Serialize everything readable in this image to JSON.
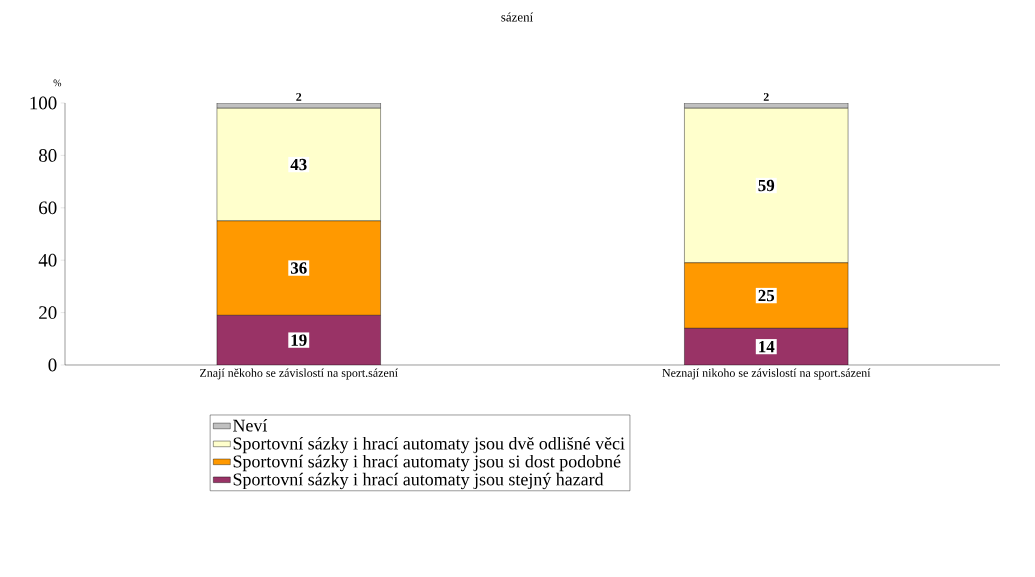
{
  "chart_data": {
    "type": "bar",
    "stacked": true,
    "title": "sázení",
    "ylabel": "%",
    "categories": [
      "Znají někoho se závislostí na sport.sázení",
      "Neznají nikoho se závislostí na sport.sázení"
    ],
    "series": [
      {
        "name": "Sportovní sázky i hrací automaty jsou stejný hazard",
        "color": "#993366",
        "values": [
          19,
          14
        ]
      },
      {
        "name": "Sportovní sázky i hrací automaty jsou si dost podobné",
        "color": "#ff9900",
        "values": [
          36,
          25
        ]
      },
      {
        "name": "Sportovní sázky i hrací automaty jsou dvě odlišné věci",
        "color": "#ffffcc",
        "values": [
          43,
          59
        ]
      },
      {
        "name": "Neví",
        "color": "#c0c0c0",
        "values": [
          2,
          2
        ]
      }
    ],
    "ylim": [
      0,
      100
    ],
    "yticks": [
      0,
      20,
      40,
      60,
      80,
      100
    ],
    "data_labels": true,
    "legend": "bottom",
    "grid": false
  }
}
